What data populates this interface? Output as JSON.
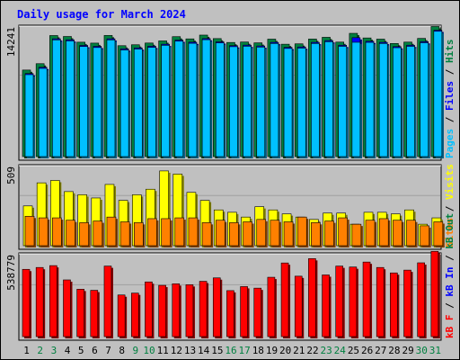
{
  "chart_data": {
    "title": "Daily usage for March 2024",
    "colors": {
      "background": "#c0c0c0",
      "panel": "#c0c0c0",
      "gridline": "#a0a0a0",
      "hits": "#008040",
      "files": "#0000ff",
      "pages": "#00c0ff",
      "visits": "#ffff00",
      "sites": "#ff8000",
      "kbytes": "#ff0000",
      "weekday_label": "#000000",
      "weekend_label": "#008040"
    },
    "days": [
      "1",
      "2",
      "3",
      "4",
      "5",
      "6",
      "7",
      "8",
      "9",
      "10",
      "11",
      "12",
      "13",
      "14",
      "15",
      "16",
      "17",
      "18",
      "19",
      "20",
      "21",
      "22",
      "23",
      "24",
      "25",
      "26",
      "27",
      "28",
      "29",
      "30",
      "31"
    ],
    "weekend_days": [
      "2",
      "3",
      "9",
      "10",
      "16",
      "17",
      "23",
      "24",
      "30",
      "31"
    ],
    "panels": [
      {
        "type": "bar",
        "y_max_label": "14241",
        "y_label_parts": [
          {
            "text": "Pages",
            "color": "#00c0ff"
          },
          {
            "text": " / ",
            "color": "#000000"
          },
          {
            "text": "Files",
            "color": "#0000ff"
          },
          {
            "text": " / ",
            "color": "#000000"
          },
          {
            "text": "Hits",
            "color": "#008040"
          }
        ],
        "ylim": [
          0,
          14241
        ],
        "series": [
          {
            "name": "Hits",
            "values": [
              9380,
              10070,
              13120,
              13020,
              12400,
              12300,
              13130,
              12020,
              12120,
              12310,
              12540,
              13000,
              12760,
              13170,
              12790,
              12370,
              12420,
              12330,
              12730,
              12180,
              12220,
              12740,
              12930,
              12410,
              13360,
              12860,
              12730,
              12260,
              12410,
              12810,
              14100
            ]
          },
          {
            "name": "Files",
            "values": [
              9000,
              9680,
              12770,
              12660,
              12050,
              11950,
              12770,
              11680,
              11780,
              11960,
              12180,
              12630,
              12400,
              12790,
              12440,
              12030,
              12080,
              11990,
              12380,
              11840,
              11880,
              12380,
              12570,
              12070,
              12890,
              12500,
              12380,
              11920,
              12070,
              12460,
              13700
            ]
          },
          {
            "name": "Pages",
            "values": [
              8880,
              9560,
              12650,
              12540,
              11930,
              11820,
              12650,
              11560,
              11660,
              11840,
              12060,
              12510,
              12280,
              12670,
              12320,
              11910,
              11960,
              11870,
              12260,
              11720,
              11760,
              12260,
              12450,
              11950,
              12390,
              12380,
              12260,
              11800,
              11950,
              12340,
              13580
            ]
          }
        ]
      },
      {
        "type": "bar",
        "y_max_label": "509",
        "y_label_parts": [
          {
            "text": "Sites",
            "color": "#ff8000"
          },
          {
            "text": " / ",
            "color": "#000000"
          },
          {
            "text": "Visits",
            "color": "#ffff00"
          }
        ],
        "ylim": [
          0,
          509
        ],
        "series": [
          {
            "name": "Visits",
            "values": [
              250,
              395,
              410,
              340,
              320,
              300,
              385,
              285,
              320,
              355,
              470,
              450,
              335,
              285,
              225,
              210,
              180,
              245,
              225,
              200,
              180,
              165,
              205,
              205,
              135,
              210,
              210,
              200,
              225,
              135,
              175
            ]
          },
          {
            "name": "Sites",
            "values": [
              185,
              175,
              175,
              160,
              145,
              155,
              180,
              150,
              145,
              170,
              170,
              175,
              175,
              145,
              160,
              145,
              150,
              165,
              160,
              150,
              180,
              145,
              155,
              175,
              135,
              160,
              170,
              160,
              160,
              125,
              150
            ]
          }
        ]
      },
      {
        "type": "bar",
        "y_max_label": "538779",
        "y_label_parts": [
          {
            "text": "kB F",
            "color": "#ff0000"
          },
          {
            "text": " / ",
            "color": "#000000"
          },
          {
            "text": "kB In",
            "color": "#0000ff"
          },
          {
            "text": " / ",
            "color": "#000000"
          },
          {
            "text": "kB Out",
            "color": "#008040"
          }
        ],
        "ylim": [
          0,
          538779
        ],
        "series": [
          {
            "name": "kB F",
            "values": [
              433000,
              445000,
              457000,
              365000,
              305000,
              298000,
              454000,
              268000,
              280000,
              352000,
              330000,
              340000,
              334000,
              356000,
              378000,
              296000,
              322000,
              312000,
              382000,
              474000,
              389000,
              502000,
              397000,
              454000,
              448000,
              480000,
              445000,
              410000,
              428000,
              475000,
              549000
            ]
          }
        ]
      }
    ]
  }
}
